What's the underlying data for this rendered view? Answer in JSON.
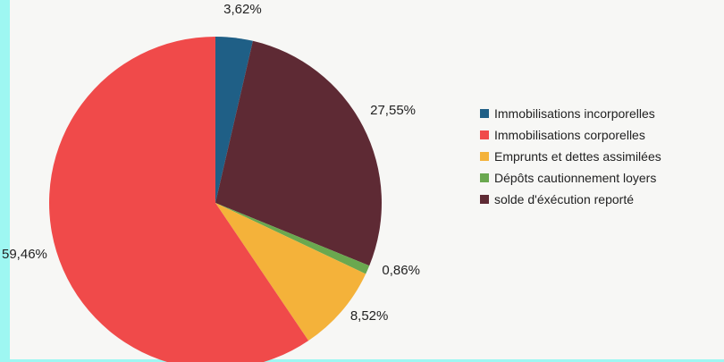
{
  "chart_data": {
    "type": "pie",
    "title": "",
    "start_angle_deg": 0,
    "direction": "clockwise",
    "legend_position": "right",
    "series": [
      {
        "name": "Immobilisations incorporelles",
        "value": 3.62,
        "label": "3,62%",
        "color": "#1f5f86"
      },
      {
        "name": "solde d'éxécution reporté",
        "value": 27.55,
        "label": "27,55%",
        "color": "#5e2a34"
      },
      {
        "name": "Dépôts cautionnement loyers",
        "value": 0.86,
        "label": "0,86%",
        "color": "#6aa84f"
      },
      {
        "name": "Emprunts et dettes assimilées",
        "value": 8.52,
        "label": "8,52%",
        "color": "#f4b23a"
      },
      {
        "name": "Immobilisations corporelles",
        "value": 59.46,
        "label": "59,46%",
        "color": "#f04a4a"
      }
    ],
    "legend_order": [
      "Immobilisations incorporelles",
      "Immobilisations corporelles",
      "Emprunts et dettes assimilées",
      "Dépôts cautionnement loyers",
      "solde d'éxécution reporté"
    ]
  }
}
